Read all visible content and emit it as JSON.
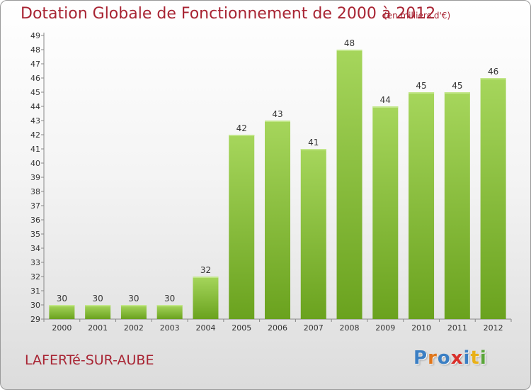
{
  "title": "Dotation Globale de Fonctionnement de 2000 à 2012",
  "unit": "(en milliers d'€)",
  "commune": "LAFERTé-SUR-AUBE",
  "logo": {
    "text": "Proxiti",
    "letter_colors": [
      "#3b7fc4",
      "#e0761b",
      "#3b7fc4",
      "#d9302b",
      "#3b7fc4",
      "#e8b019",
      "#5aa63a"
    ]
  },
  "colors": {
    "title": "#a82433",
    "bar_top": "#a6d65c",
    "bar_bottom": "#6aa21e"
  },
  "chart_data": {
    "type": "bar",
    "title": "Dotation Globale de Fonctionnement de 2000 à 2012",
    "subtitle": "(en milliers d'€)",
    "xlabel": "",
    "ylabel": "",
    "categories": [
      "2000",
      "2001",
      "2002",
      "2003",
      "2004",
      "2005",
      "2006",
      "2007",
      "2008",
      "2009",
      "2010",
      "2011",
      "2012"
    ],
    "values": [
      30,
      30,
      30,
      30,
      32,
      42,
      43,
      41,
      48,
      44,
      45,
      45,
      46
    ],
    "data_labels": [
      "30",
      "30",
      "30",
      "30",
      "32",
      "42",
      "43",
      "41",
      "48",
      "44",
      "45",
      "45",
      "46"
    ],
    "ylim": [
      29,
      49
    ],
    "yticks": [
      "29",
      "30",
      "31",
      "32",
      "33",
      "34",
      "35",
      "36",
      "37",
      "38",
      "39",
      "40",
      "41",
      "42",
      "43",
      "44",
      "45",
      "46",
      "47",
      "48",
      "49"
    ],
    "grid": false,
    "legend": "none"
  }
}
